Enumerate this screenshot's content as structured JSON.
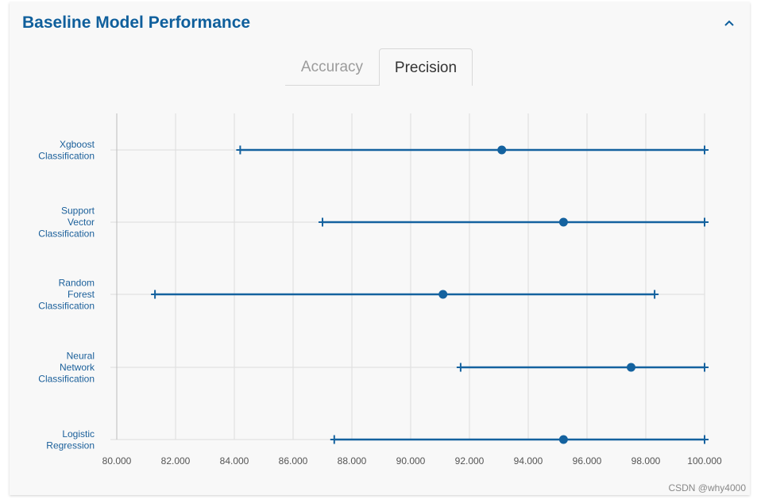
{
  "header": {
    "title": "Baseline Model Performance"
  },
  "icons": {
    "collapse": "chevron-up-icon"
  },
  "tabs": [
    {
      "label": "Accuracy",
      "active": false
    },
    {
      "label": "Precision",
      "active": true
    }
  ],
  "colors": {
    "accent": "#0f5f9c",
    "series": "#14629f",
    "grid": "#dddddd"
  },
  "watermark": "CSDN @why4000",
  "chart_data": {
    "type": "range",
    "orientation": "horizontal",
    "categories": [
      [
        "Xgboost",
        "Classification"
      ],
      [
        "Support",
        "Vector",
        "Classification"
      ],
      [
        "Random",
        "Forest",
        "Classification"
      ],
      [
        "Neural",
        "Network",
        "Classification"
      ],
      [
        "Logistic",
        "Regression"
      ]
    ],
    "min": [
      84.2,
      87.0,
      81.3,
      91.7,
      87.4
    ],
    "mean": [
      93.1,
      95.2,
      91.1,
      97.5,
      95.2
    ],
    "max": [
      100.0,
      100.0,
      98.3,
      100.0,
      100.0
    ],
    "xlim": [
      80,
      100
    ],
    "xticks": [
      "80.000",
      "82.000",
      "84.000",
      "86.000",
      "88.000",
      "90.000",
      "92.000",
      "94.000",
      "96.000",
      "98.000",
      "100.000"
    ],
    "grid": true
  }
}
